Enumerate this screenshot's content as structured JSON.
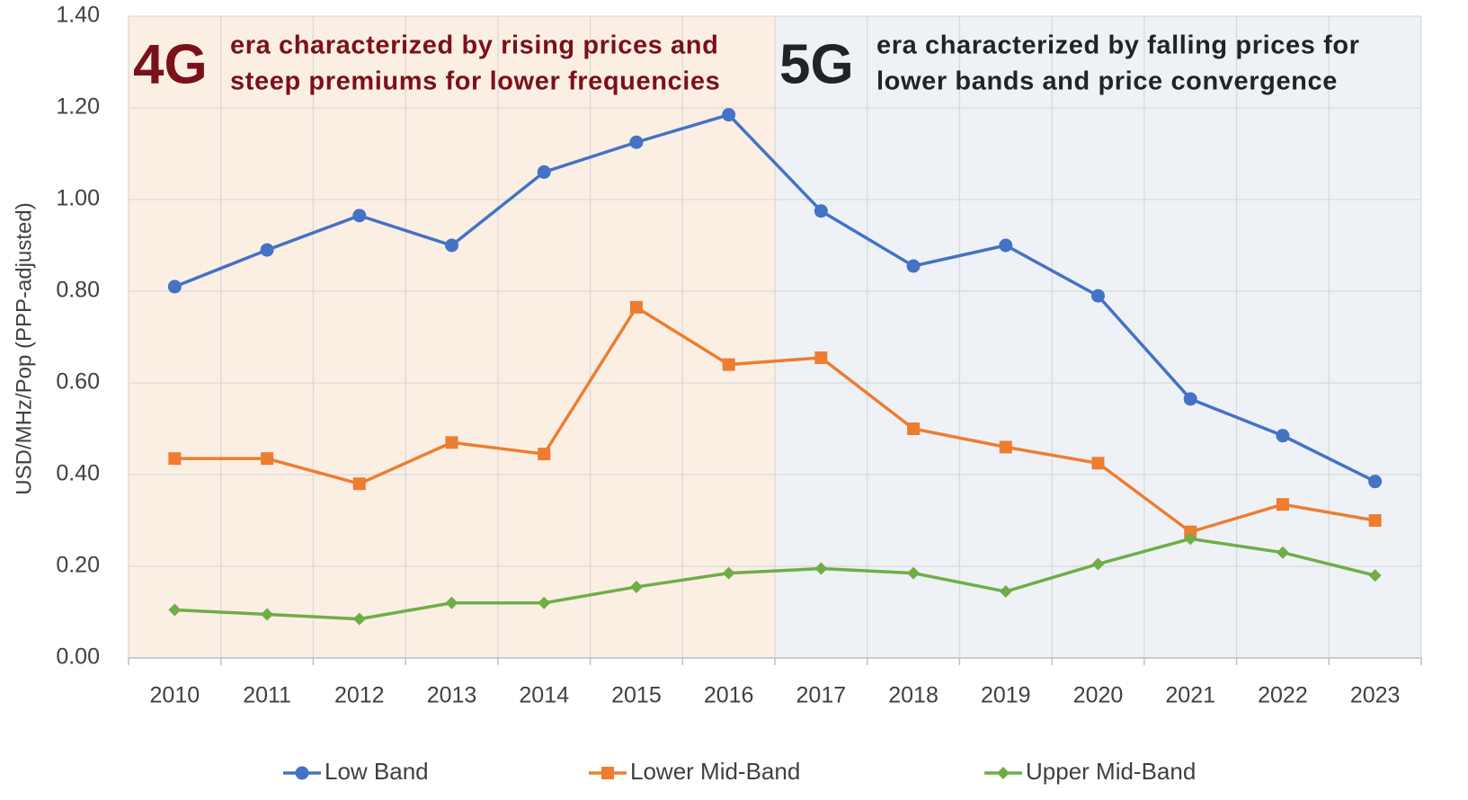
{
  "chart_data": {
    "type": "line",
    "y_label": "USD/MHz/Pop (PPP-adjusted)",
    "categories": [
      "2010",
      "2011",
      "2012",
      "2013",
      "2014",
      "2015",
      "2016",
      "2017",
      "2018",
      "2019",
      "2020",
      "2021",
      "2022",
      "2023"
    ],
    "series": [
      {
        "name": "Low Band",
        "color": "#4472c4",
        "marker": "circle",
        "values": [
          0.81,
          0.89,
          0.965,
          0.9,
          1.06,
          1.125,
          1.185,
          0.975,
          0.855,
          0.9,
          0.79,
          0.565,
          0.485,
          0.385
        ]
      },
      {
        "name": "Lower Mid-Band",
        "color": "#ed7d31",
        "marker": "square",
        "values": [
          0.435,
          0.435,
          0.38,
          0.47,
          0.445,
          0.765,
          0.64,
          0.655,
          0.5,
          0.46,
          0.425,
          0.275,
          0.335,
          0.3
        ]
      },
      {
        "name": "Upper Mid-Band",
        "color": "#70ad47",
        "marker": "diamond",
        "values": [
          0.105,
          0.095,
          0.085,
          0.12,
          0.12,
          0.155,
          0.185,
          0.195,
          0.185,
          0.145,
          0.205,
          0.26,
          0.23,
          0.18
        ]
      }
    ],
    "ylim": [
      0,
      1.4
    ],
    "yticks": [
      {
        "value": 0,
        "label": "0.00"
      },
      {
        "value": 0.2,
        "label": "0.20"
      },
      {
        "value": 0.4,
        "label": "0.40"
      },
      {
        "value": 0.6,
        "label": "0.60"
      },
      {
        "value": 0.8,
        "label": "0.80"
      },
      {
        "value": 1.0,
        "label": "1.00"
      },
      {
        "value": 1.2,
        "label": "1.20"
      },
      {
        "value": 1.4,
        "label": "1.40"
      }
    ],
    "grid": true,
    "legend": "bottom",
    "annotations": [
      {
        "label": "4G",
        "lines": [
          "era characterized by rising prices and",
          "steep premiums for lower frequencies"
        ],
        "color": "#7b1018",
        "background": "#fbefe4"
      },
      {
        "label": "5G",
        "lines": [
          "era characterized by falling prices for",
          "lower bands and price convergence"
        ],
        "color": "#1f2428",
        "background": "#eef2f7"
      }
    ]
  }
}
